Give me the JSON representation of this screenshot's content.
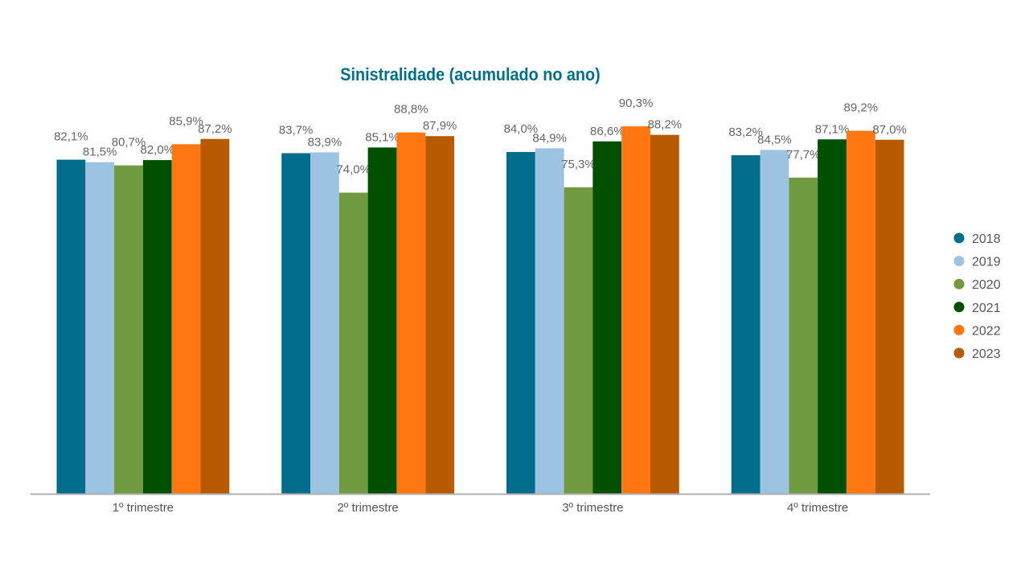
{
  "chart_data": {
    "type": "bar",
    "title": "Sinistralidade (acumulado no ano)",
    "categories": [
      "1º trimestre",
      "2º trimestre",
      "3º trimestre",
      "4º trimestre"
    ],
    "series": [
      {
        "name": "2018",
        "color": "#006d8c",
        "values": [
          82.1,
          83.7,
          84.0,
          83.2
        ],
        "labels": [
          "82,1%",
          "83,7%",
          "84,0%",
          "83,2%"
        ]
      },
      {
        "name": "2019",
        "color": "#9dc3e3",
        "values": [
          81.5,
          83.9,
          84.9,
          84.5
        ],
        "labels": [
          "81,5%",
          "83,9%",
          "84,9%",
          "84,5%"
        ]
      },
      {
        "name": "2020",
        "color": "#6f9a3f",
        "values": [
          80.7,
          74.0,
          75.3,
          77.7
        ],
        "labels": [
          "80,7%",
          "74,0%",
          "75,3%",
          "77,7%"
        ]
      },
      {
        "name": "2021",
        "color": "#005000",
        "values": [
          82.0,
          85.1,
          86.6,
          87.1
        ],
        "labels": [
          "82,0%",
          "85,1%",
          "86,6%",
          "87,1%"
        ]
      },
      {
        "name": "2022",
        "color": "#ff7711",
        "values": [
          85.9,
          88.8,
          90.3,
          89.2
        ],
        "labels": [
          "85,9%",
          "88,8%",
          "90,3%",
          "89,2%"
        ]
      },
      {
        "name": "2023",
        "color": "#b85a00",
        "values": [
          87.2,
          87.9,
          88.2,
          87.0
        ],
        "labels": [
          "87,2%",
          "87,9%",
          "88,2%",
          "87,0%"
        ]
      }
    ],
    "ylim": [
      0,
      100
    ],
    "grid": false,
    "legend": "right"
  }
}
